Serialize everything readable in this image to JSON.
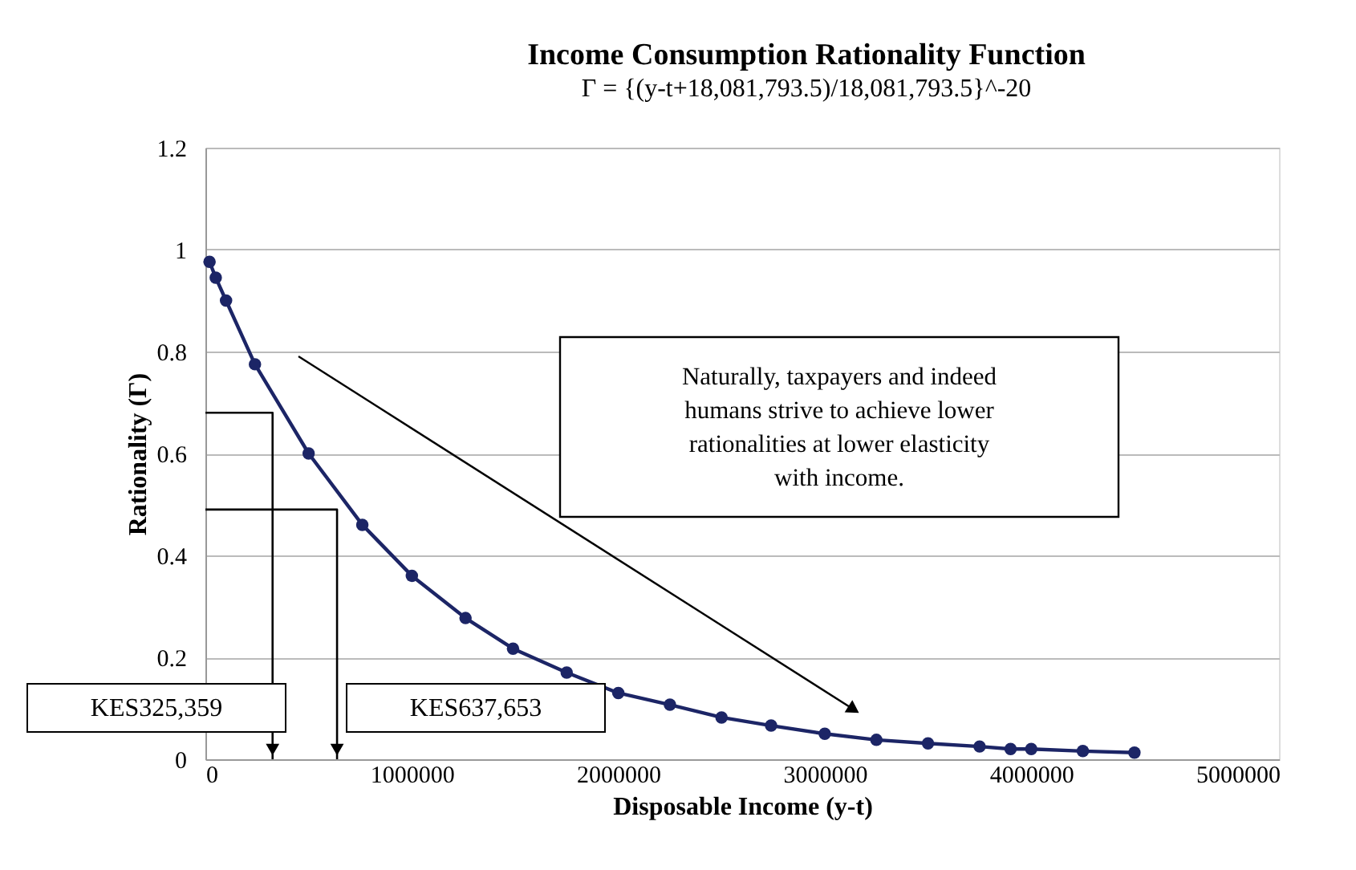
{
  "chart_data": {
    "type": "line",
    "title": "Income Consumption Rationality Function",
    "subtitle": "Γ = {(y-t+18,081,793.5)/18,081,793.5}^-20",
    "xlabel": "Disposable Income (y-t)",
    "ylabel": "Rationality (Γ)",
    "series": [
      {
        "color": "#1c2566",
        "x": [
          20000,
          50000,
          100000,
          240000,
          500000,
          760000,
          1000000,
          1260000,
          1490000,
          1750000,
          2000000,
          2250000,
          2500000,
          2740000,
          3000000,
          3250000,
          3500000,
          3750000,
          3900000,
          4000000,
          4250000,
          4500000
        ],
        "values": [
          0.976,
          0.945,
          0.9,
          0.775,
          0.6,
          0.46,
          0.36,
          0.277,
          0.217,
          0.17,
          0.13,
          0.107,
          0.082,
          0.066,
          0.05,
          0.038,
          0.031,
          0.025,
          0.02,
          0.02,
          0.016,
          0.013
        ]
      },
      {
        "color": "#000000",
        "marker": "none",
        "x": [
          0,
          325359,
          325359
        ],
        "values": [
          0.68,
          0.68,
          0
        ]
      },
      {
        "color": "#000000",
        "marker": "none",
        "x": [
          0,
          637653,
          637653
        ],
        "values": [
          0.49,
          0.49,
          0
        ]
      }
    ],
    "xlim": [
      0,
      5200000
    ],
    "xticks": [
      0,
      1000000,
      2000000,
      3000000,
      4000000,
      5000000
    ],
    "ylim": [
      0,
      1.2
    ],
    "yticks": [
      0,
      0.2,
      0.4,
      0.6,
      0.8,
      1,
      1.2
    ],
    "grid": "y",
    "marker": "circle",
    "line_style": "solid",
    "legend": false,
    "annotations": [
      "KES325,359",
      "KES637,653",
      "Naturally, taxpayers and indeed humans strive to achieve lower rationalities at lower elasticity with income."
    ]
  }
}
